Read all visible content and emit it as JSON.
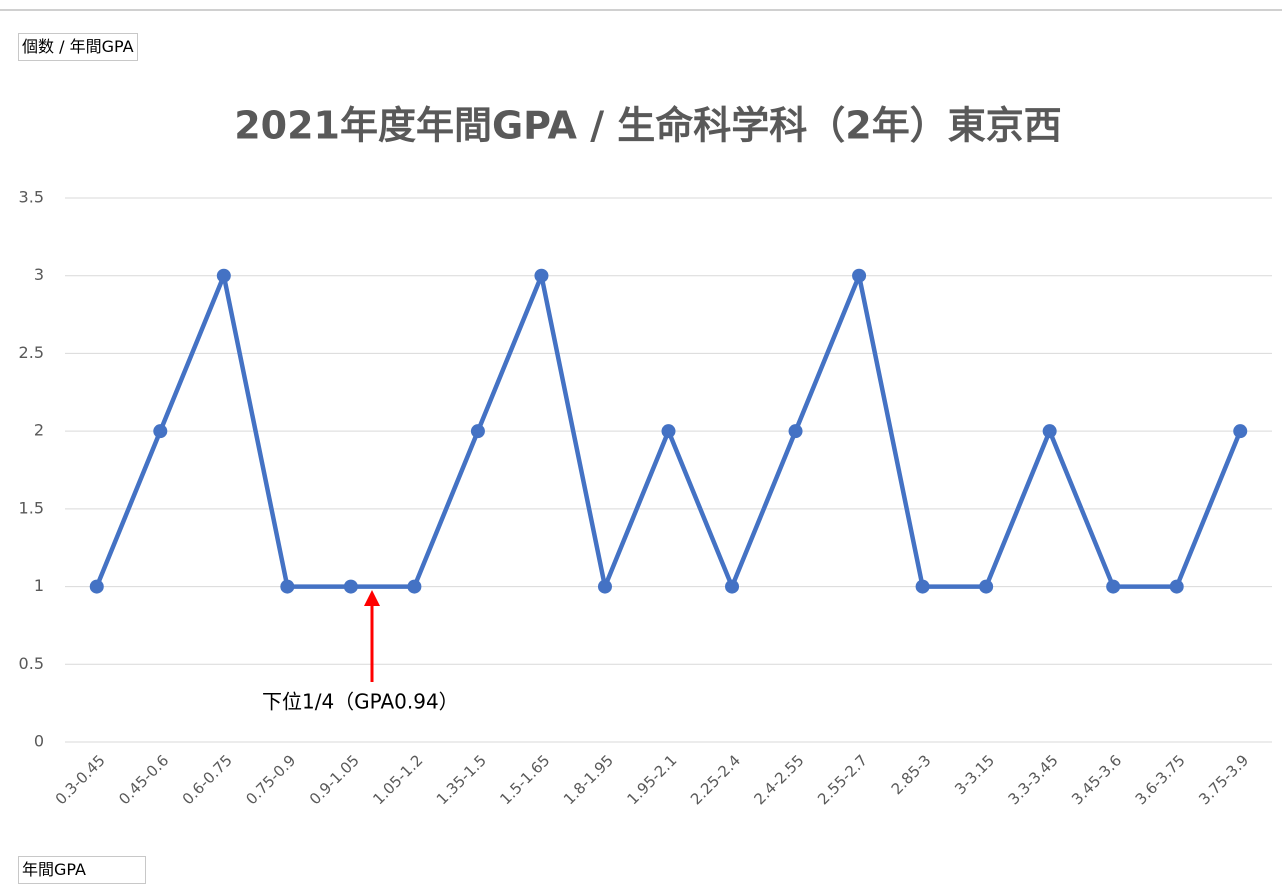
{
  "chart_data": {
    "type": "line",
    "title": "2021年度年間GPA / 生命科学科（2年）東京西",
    "value_field": "個数 / 年間GPA",
    "axis_field": "年間GPA",
    "annotation": "下位1/4（GPA0.94）",
    "categories": [
      "0.3-0.45",
      "0.45-0.6",
      "0.6-0.75",
      "0.75-0.9",
      "0.9-1.05",
      "1.05-1.2",
      "1.35-1.5",
      "1.5-1.65",
      "1.8-1.95",
      "1.95-2.1",
      "2.25-2.4",
      "2.4-2.55",
      "2.55-2.7",
      "2.85-3",
      "3-3.15",
      "3.3-3.45",
      "3.45-3.6",
      "3.6-3.75",
      "3.75-3.9"
    ],
    "values": [
      1,
      2,
      3,
      1,
      1,
      1,
      2,
      3,
      1,
      2,
      1,
      2,
      3,
      1,
      1,
      2,
      1,
      1,
      2
    ],
    "color": "#4472c4",
    "ylim": [
      0,
      3.5
    ],
    "yticks": [
      0,
      0.5,
      1,
      1.5,
      2,
      2.5,
      3,
      3.5
    ],
    "grid": true
  }
}
